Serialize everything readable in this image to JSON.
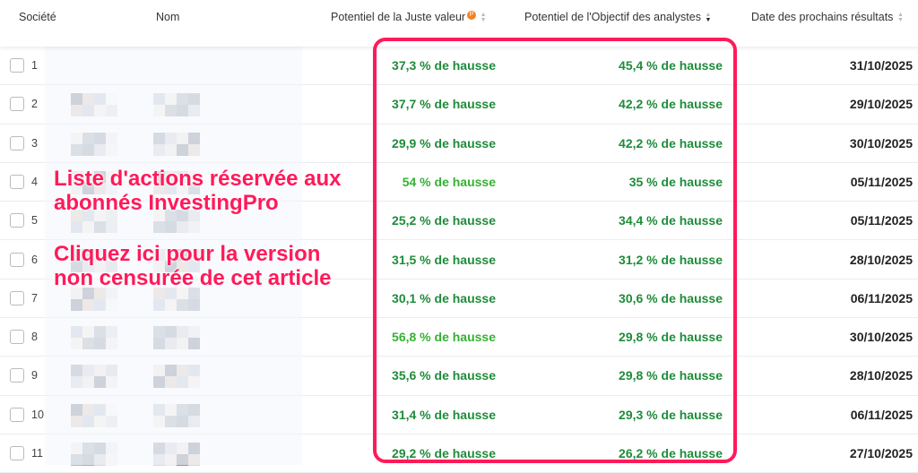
{
  "header": {
    "societe": "Société",
    "nom": "Nom",
    "juste_valeur": "Potentiel de la Juste valeur",
    "pro_badge": "P",
    "objectif": "Potentiel de l'Objectif des analystes",
    "date": "Date des prochains résultats"
  },
  "colors": {
    "accent": "#ff1a5a",
    "green": "#1e8c3a",
    "green_light": "#34b233"
  },
  "rows": [
    {
      "n": "1",
      "jv": "37,3 % de hausse",
      "obj": "45,4 % de hausse",
      "date": "31/10/2025"
    },
    {
      "n": "2",
      "jv": "37,7 % de hausse",
      "obj": "42,2 % de hausse",
      "date": "29/10/2025"
    },
    {
      "n": "3",
      "jv": "29,9 % de hausse",
      "obj": "42,2 % de hausse",
      "date": "30/10/2025"
    },
    {
      "n": "4",
      "jv": "54 % de hausse",
      "obj": "35 % de hausse",
      "date": "05/11/2025"
    },
    {
      "n": "5",
      "jv": "25,2 % de hausse",
      "obj": "34,4 % de hausse",
      "date": "05/11/2025"
    },
    {
      "n": "6",
      "jv": "31,5 % de hausse",
      "obj": "31,2 % de hausse",
      "date": "28/10/2025"
    },
    {
      "n": "7",
      "jv": "30,1 % de hausse",
      "obj": "30,6 % de hausse",
      "date": "06/11/2025"
    },
    {
      "n": "8",
      "jv": "56,8 % de hausse",
      "obj": "29,8 % de hausse",
      "date": "30/10/2025"
    },
    {
      "n": "9",
      "jv": "35,6 % de hausse",
      "obj": "29,8 % de hausse",
      "date": "28/10/2025"
    },
    {
      "n": "10",
      "jv": "31,4 % de hausse",
      "obj": "29,3 % de hausse",
      "date": "06/11/2025"
    },
    {
      "n": "11",
      "jv": "29,2 % de hausse",
      "obj": "26,2 % de hausse",
      "date": "27/10/2025"
    }
  ],
  "promo": {
    "line1": "Liste d'actions réservée aux",
    "line2": "abonnés InvestingPro",
    "line3": "Cliquez ici pour la version",
    "line4": "non censurée de cet article"
  }
}
